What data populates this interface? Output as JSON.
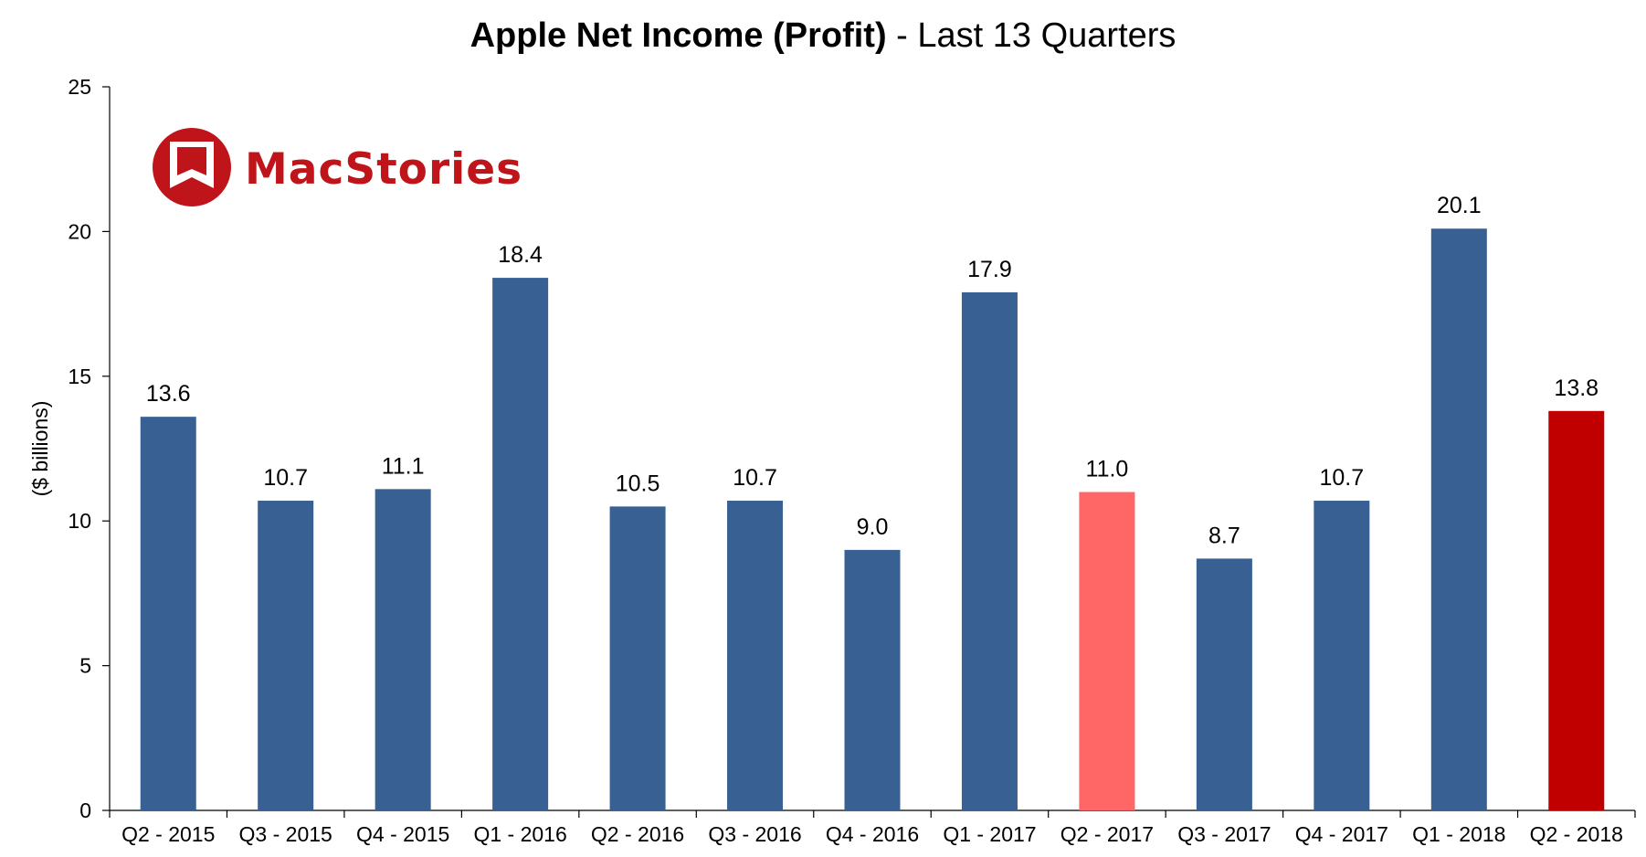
{
  "title_bold": "Apple Net Income (Profit)",
  "title_rest": " - Last 13 Quarters",
  "logo": {
    "text": "MacStories",
    "color": "#C0141B"
  },
  "chart_data": {
    "type": "bar",
    "title": "Apple Net Income (Profit) - Last 13 Quarters",
    "xlabel": "",
    "ylabel": "($ billions)",
    "ylim": [
      0,
      25
    ],
    "yticks": [
      0,
      5,
      10,
      15,
      20,
      25
    ],
    "grid": false,
    "legend": "none",
    "categories": [
      "Q2 - 2015",
      "Q3 - 2015",
      "Q4 - 2015",
      "Q1 - 2016",
      "Q2 - 2016",
      "Q3 - 2016",
      "Q4 - 2016",
      "Q1 - 2017",
      "Q2 - 2017",
      "Q3 - 2017",
      "Q4 - 2017",
      "Q1 - 2018",
      "Q2 - 2018"
    ],
    "values": [
      13.6,
      10.7,
      11.1,
      18.4,
      10.5,
      10.7,
      9.0,
      17.9,
      11.0,
      8.7,
      10.7,
      20.1,
      13.8
    ],
    "data_labels": [
      "13.6",
      "10.7",
      "11.1",
      "18.4",
      "10.5",
      "10.7",
      "9.0",
      "17.9",
      "11.0",
      "8.7",
      "10.7",
      "20.1",
      "13.8"
    ],
    "colors": [
      "#386092",
      "#386092",
      "#386092",
      "#386092",
      "#386092",
      "#386092",
      "#386092",
      "#386092",
      "#FF6666",
      "#386092",
      "#386092",
      "#386092",
      "#C00000"
    ]
  }
}
